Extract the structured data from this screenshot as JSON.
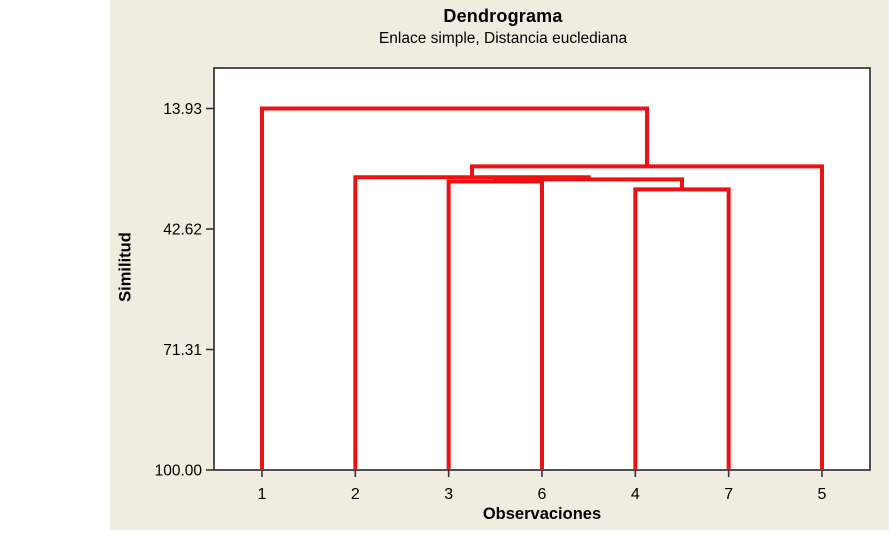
{
  "chart_data": {
    "type": "dendrogram",
    "title": "Dendrograma",
    "subtitle": "Enlace simple, Distancia euclediana",
    "xlabel": "Observaciones",
    "ylabel": "Similitud",
    "y_axis": {
      "direction": "similarity decreases upward (100 at baseline, minimum at top)",
      "ticks": [
        {
          "label": "13.93",
          "value": 13.93
        },
        {
          "label": "42.62",
          "value": 42.62
        },
        {
          "label": "71.31",
          "value": 71.31
        },
        {
          "label": "100.00",
          "value": 100.0
        }
      ],
      "bottom_value": 100.0,
      "top_value": 13.93
    },
    "leaves": [
      "1",
      "2",
      "3",
      "6",
      "4",
      "7",
      "5"
    ],
    "merges": [
      {
        "id": "m1",
        "left": "4",
        "right": "7",
        "similarity": 33.2
      },
      {
        "id": "m2",
        "left": "3",
        "right": "6",
        "similarity": 31.3
      },
      {
        "id": "m3",
        "left": "m2",
        "right": "m1",
        "similarity": 30.8
      },
      {
        "id": "m4",
        "left": "2",
        "right": "m3",
        "similarity": 30.3
      },
      {
        "id": "m5",
        "left": "m4",
        "right": "5",
        "similarity": 27.7
      },
      {
        "id": "m6",
        "left": "1",
        "right": "m5",
        "similarity": 13.93
      }
    ],
    "grid": "off",
    "legend": "none",
    "colors": {
      "branch": "#ee1111",
      "panel_background": "#f0ece0",
      "plot_background": "#ffffff",
      "frame": "#333333",
      "text": "#000000"
    }
  }
}
